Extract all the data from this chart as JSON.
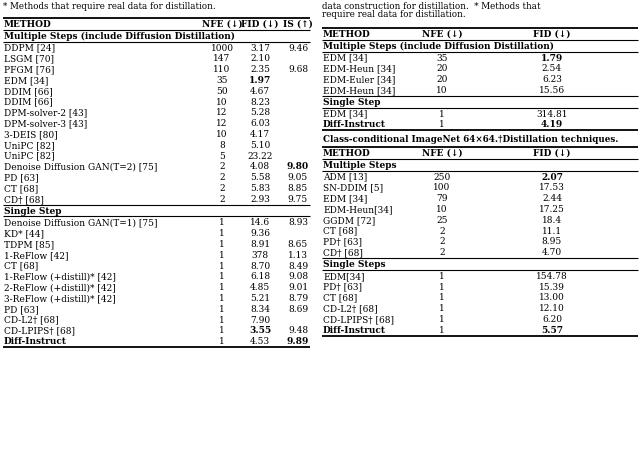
{
  "title_left": "* Methods that require real data for distillation.",
  "title_right_line1": "data construction for distillation.  * Methods that",
  "title_right_line2": "require real data for distillation.",
  "left_table": {
    "header": [
      "METHOD",
      "NFE (↓)",
      "FID (↓)",
      "IS (↑)"
    ],
    "section1_title": "Multiple Steps (include Diffusion Distillation)",
    "section1": [
      [
        "DDPM [24]",
        "1000",
        "3.17",
        "9.46"
      ],
      [
        "LSGM [70]",
        "147",
        "2.10",
        ""
      ],
      [
        "PFGM [76]",
        "110",
        "2.35",
        "9.68"
      ],
      [
        "EDM [34]",
        "35",
        "**1.97**",
        ""
      ],
      [
        "DDIM [66]",
        "50",
        "4.67",
        ""
      ],
      [
        "DDIM [66]",
        "10",
        "8.23",
        ""
      ],
      [
        "DPM-solver-2 [43]",
        "12",
        "5.28",
        ""
      ],
      [
        "DPM-solver-3 [43]",
        "12",
        "6.03",
        ""
      ],
      [
        "3-DEIS [80]",
        "10",
        "4.17",
        ""
      ],
      [
        "UniPC [82]",
        "8",
        "5.10",
        ""
      ],
      [
        "UniPC [82]",
        "5",
        "23.22",
        ""
      ],
      [
        "Denoise Diffusion GAN(T=2) [75]",
        "2",
        "4.08",
        "**9.80**"
      ],
      [
        "PD [63]",
        "2",
        "5.58",
        "9.05"
      ],
      [
        "CT [68]",
        "2",
        "5.83",
        "8.85"
      ],
      [
        "CD† [68]",
        "2",
        "2.93",
        "9.75"
      ]
    ],
    "section2_title": "Single Step",
    "section2": [
      [
        "Denoise Diffusion GAN(T=1) [75]",
        "1",
        "14.6",
        "8.93"
      ],
      [
        "KD* [44]",
        "1",
        "9.36",
        ""
      ],
      [
        "TDPM [85]",
        "1",
        "8.91",
        "8.65"
      ],
      [
        "1-ReFlow [42]",
        "1",
        "378",
        "1.13"
      ],
      [
        "CT [68]",
        "1",
        "8.70",
        "8.49"
      ],
      [
        "1-ReFlow (+distill)* [42]",
        "1",
        "6.18",
        "9.08"
      ],
      [
        "2-ReFlow (+distill)* [42]",
        "1",
        "4.85",
        "9.01"
      ],
      [
        "3-ReFlow (+distill)* [42]",
        "1",
        "5.21",
        "8.79"
      ],
      [
        "PD [63]",
        "1",
        "8.34",
        "8.69"
      ],
      [
        "CD-L2† [68]",
        "1",
        "7.90",
        ""
      ],
      [
        "CD-LPIPS† [68]",
        "1",
        "**3.55**",
        "9.48"
      ],
      [
        "**Diff-Instruct**",
        "1",
        "4.53",
        "**9.89**"
      ]
    ]
  },
  "right_table_top": {
    "header": [
      "METHOD",
      "NFE (↓)",
      "FID (↓)"
    ],
    "section1_title": "Multiple Steps (include Diffusion Distillation)",
    "section1": [
      [
        "EDM [34]",
        "35",
        "**1.79**"
      ],
      [
        "EDM-Heun [34]",
        "20",
        "2.54"
      ],
      [
        "EDM-Euler [34]",
        "20",
        "6.23"
      ],
      [
        "EDM-Heun [34]",
        "10",
        "15.56"
      ]
    ],
    "section2_title": "Single Step",
    "section2": [
      [
        "EDM [34]",
        "1",
        "314.81"
      ],
      [
        "**Diff-Instruct**",
        "1",
        "**4.19**"
      ]
    ]
  },
  "right_table_bottom": {
    "super_title": "Class-conditional ImageNet 64×64.†Distillation techniques.",
    "header": [
      "METHOD",
      "NFE (↓)",
      "FID (↓)"
    ],
    "section1_title": "Multiple Steps",
    "section1": [
      [
        "ADM [13]",
        "250",
        "**2.07**"
      ],
      [
        "SN-DDIM [5]",
        "100",
        "17.53"
      ],
      [
        "EDM [34]",
        "79",
        "2.44"
      ],
      [
        "EDM-Heun[34]",
        "10",
        "17.25"
      ],
      [
        "GGDM [72]",
        "25",
        "18.4"
      ],
      [
        "CT [68]",
        "2",
        "11.1"
      ],
      [
        "PD† [63]",
        "2",
        "8.95"
      ],
      [
        "CD† [68]",
        "2",
        "4.70"
      ]
    ],
    "section2_title": "Single Steps",
    "section2": [
      [
        "EDM[34]",
        "1",
        "154.78"
      ],
      [
        "PD† [63]",
        "1",
        "15.39"
      ],
      [
        "CT [68]",
        "1",
        "13.00"
      ],
      [
        "CD-L2† [68]",
        "1",
        "12.10"
      ],
      [
        "CD-LPIPS† [68]",
        "1",
        "6.20"
      ],
      [
        "**Diff-Instruct**",
        "1",
        "**5.57**"
      ]
    ]
  }
}
